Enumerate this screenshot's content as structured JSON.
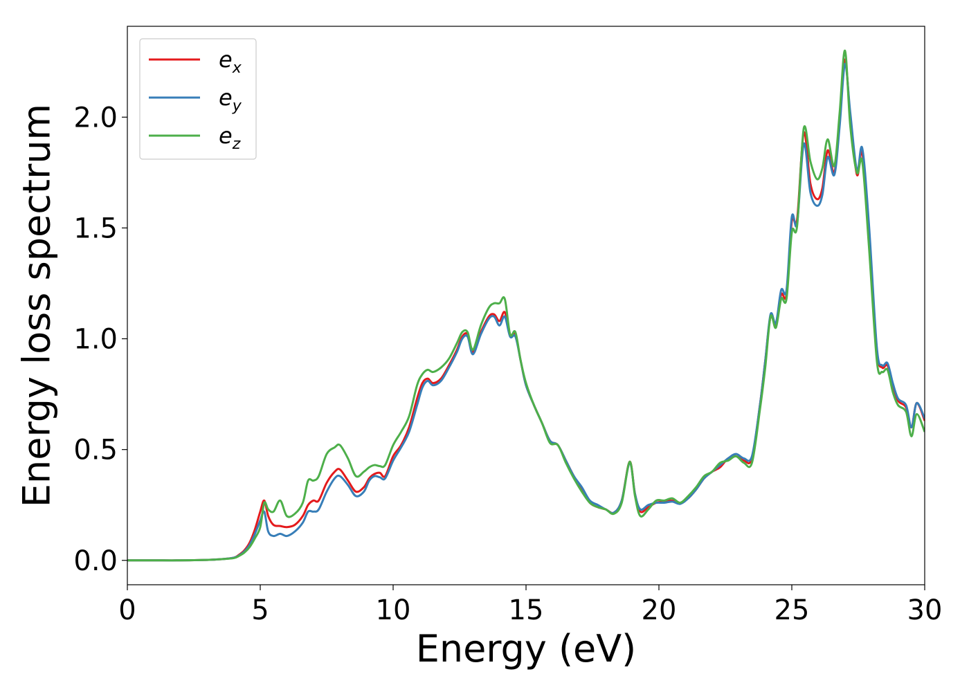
{
  "chart_data": {
    "type": "line",
    "xlabel": "Energy (eV)",
    "ylabel": "Energy loss spectrum",
    "xlim": [
      0,
      30
    ],
    "ylim": [
      -0.11,
      2.41
    ],
    "xticks": [
      0,
      5,
      10,
      15,
      20,
      25,
      30
    ],
    "xtick_labels": [
      "0",
      "5",
      "10",
      "15",
      "20",
      "25",
      "30"
    ],
    "yticks": [
      0.0,
      0.5,
      1.0,
      1.5,
      2.0
    ],
    "ytick_labels": [
      "0.0",
      "0.5",
      "1.0",
      "1.5",
      "2.0"
    ],
    "grid": false,
    "legend_position": "top-left",
    "x": [
      0,
      1,
      2,
      3,
      3.5,
      4,
      4.2,
      4.4,
      4.6,
      4.8,
      5.0,
      5.15,
      5.3,
      5.5,
      5.75,
      6.0,
      6.3,
      6.6,
      6.8,
      7.0,
      7.2,
      7.5,
      7.8,
      8.0,
      8.3,
      8.6,
      8.9,
      9.1,
      9.3,
      9.5,
      9.7,
      10.0,
      10.3,
      10.6,
      10.9,
      11.1,
      11.3,
      11.5,
      11.8,
      12.1,
      12.4,
      12.6,
      12.8,
      13.0,
      13.3,
      13.6,
      13.8,
      14.0,
      14.2,
      14.4,
      14.6,
      14.8,
      15.0,
      15.3,
      15.6,
      15.9,
      16.2,
      16.5,
      16.8,
      17.1,
      17.4,
      17.7,
      18.0,
      18.3,
      18.6,
      18.9,
      19.1,
      19.3,
      19.6,
      19.9,
      20.2,
      20.5,
      20.8,
      21.1,
      21.4,
      21.7,
      22.0,
      22.3,
      22.6,
      22.9,
      23.2,
      23.5,
      23.8,
      24.0,
      24.2,
      24.4,
      24.6,
      24.8,
      25.0,
      25.2,
      25.45,
      25.7,
      25.95,
      26.15,
      26.35,
      26.6,
      26.8,
      27.0,
      27.2,
      27.45,
      27.65,
      27.9,
      28.2,
      28.4,
      28.6,
      28.8,
      29.0,
      29.3,
      29.5,
      29.7,
      30.0
    ],
    "series": [
      {
        "name": "e_x",
        "color": "#e41a1c",
        "values": [
          0,
          0,
          0,
          0.002,
          0.005,
          0.012,
          0.025,
          0.045,
          0.08,
          0.14,
          0.22,
          0.27,
          0.2,
          0.16,
          0.155,
          0.15,
          0.16,
          0.2,
          0.25,
          0.27,
          0.27,
          0.35,
          0.4,
          0.41,
          0.36,
          0.31,
          0.33,
          0.37,
          0.39,
          0.395,
          0.38,
          0.47,
          0.52,
          0.6,
          0.73,
          0.8,
          0.82,
          0.8,
          0.82,
          0.88,
          0.95,
          1.01,
          1.02,
          0.94,
          1.03,
          1.1,
          1.11,
          1.08,
          1.12,
          1.02,
          1.02,
          0.9,
          0.79,
          0.7,
          0.62,
          0.54,
          0.52,
          0.45,
          0.38,
          0.32,
          0.26,
          0.24,
          0.23,
          0.215,
          0.27,
          0.445,
          0.3,
          0.22,
          0.24,
          0.26,
          0.265,
          0.27,
          0.26,
          0.28,
          0.32,
          0.37,
          0.4,
          0.42,
          0.46,
          0.47,
          0.45,
          0.46,
          0.7,
          0.9,
          1.1,
          1.06,
          1.2,
          1.2,
          1.53,
          1.54,
          1.93,
          1.7,
          1.63,
          1.68,
          1.85,
          1.75,
          1.98,
          2.26,
          2.0,
          1.74,
          1.84,
          1.48,
          0.95,
          0.87,
          0.88,
          0.79,
          0.72,
          0.69,
          0.6,
          0.71,
          0.63
        ]
      },
      {
        "name": "e_y",
        "color": "#377eb8",
        "values": [
          0,
          0,
          0,
          0.002,
          0.005,
          0.012,
          0.022,
          0.04,
          0.07,
          0.12,
          0.18,
          0.22,
          0.13,
          0.11,
          0.12,
          0.11,
          0.13,
          0.17,
          0.22,
          0.22,
          0.23,
          0.31,
          0.37,
          0.38,
          0.34,
          0.29,
          0.31,
          0.36,
          0.38,
          0.375,
          0.37,
          0.45,
          0.51,
          0.58,
          0.7,
          0.78,
          0.81,
          0.79,
          0.81,
          0.87,
          0.94,
          1.0,
          1.01,
          0.93,
          1.02,
          1.09,
          1.1,
          1.06,
          1.1,
          1.01,
          1.01,
          0.9,
          0.79,
          0.7,
          0.62,
          0.54,
          0.52,
          0.45,
          0.38,
          0.33,
          0.27,
          0.25,
          0.23,
          0.215,
          0.27,
          0.44,
          0.3,
          0.23,
          0.25,
          0.26,
          0.26,
          0.265,
          0.255,
          0.28,
          0.32,
          0.37,
          0.4,
          0.43,
          0.46,
          0.48,
          0.46,
          0.47,
          0.7,
          0.9,
          1.11,
          1.07,
          1.22,
          1.22,
          1.55,
          1.52,
          1.88,
          1.66,
          1.6,
          1.65,
          1.82,
          1.74,
          1.96,
          2.24,
          2.02,
          1.76,
          1.86,
          1.52,
          0.96,
          0.88,
          0.89,
          0.8,
          0.73,
          0.7,
          0.6,
          0.71,
          0.64
        ]
      },
      {
        "name": "e_z",
        "color": "#4daf4a",
        "values": [
          0,
          0,
          0,
          0.002,
          0.005,
          0.01,
          0.02,
          0.035,
          0.06,
          0.1,
          0.15,
          0.26,
          0.23,
          0.22,
          0.27,
          0.2,
          0.21,
          0.26,
          0.36,
          0.36,
          0.38,
          0.48,
          0.51,
          0.52,
          0.46,
          0.38,
          0.4,
          0.42,
          0.43,
          0.425,
          0.43,
          0.52,
          0.58,
          0.65,
          0.79,
          0.84,
          0.86,
          0.85,
          0.87,
          0.91,
          0.98,
          1.03,
          1.03,
          0.95,
          1.06,
          1.14,
          1.16,
          1.16,
          1.18,
          1.02,
          1.03,
          0.9,
          0.8,
          0.7,
          0.62,
          0.53,
          0.52,
          0.44,
          0.37,
          0.31,
          0.26,
          0.24,
          0.23,
          0.21,
          0.26,
          0.445,
          0.29,
          0.2,
          0.23,
          0.27,
          0.27,
          0.28,
          0.26,
          0.29,
          0.33,
          0.38,
          0.4,
          0.44,
          0.45,
          0.47,
          0.44,
          0.44,
          0.68,
          0.87,
          1.1,
          1.05,
          1.18,
          1.18,
          1.48,
          1.51,
          1.95,
          1.8,
          1.72,
          1.77,
          1.9,
          1.78,
          2.02,
          2.3,
          1.96,
          1.75,
          1.8,
          1.42,
          0.9,
          0.85,
          0.86,
          0.76,
          0.7,
          0.67,
          0.56,
          0.66,
          0.58
        ]
      }
    ]
  },
  "legend": [
    {
      "base": "e",
      "sub": "x",
      "color": "#e41a1c"
    },
    {
      "base": "e",
      "sub": "y",
      "color": "#377eb8"
    },
    {
      "base": "e",
      "sub": "z",
      "color": "#4daf4a"
    }
  ]
}
